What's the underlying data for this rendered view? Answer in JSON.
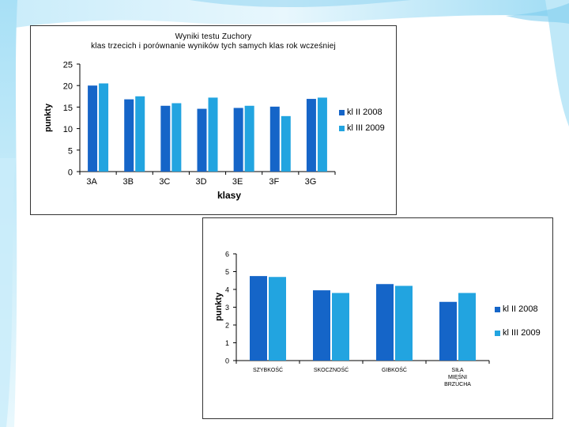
{
  "colors": {
    "series1": "#1565c8",
    "series2": "#22a4e0",
    "frame": "#333333"
  },
  "chart_data": [
    {
      "type": "bar",
      "title": "Wyniki testu Zuchory",
      "subtitle": "klas trzecich i porównanie wyników tych samych klas rok wcześniej",
      "xlabel": "klasy",
      "ylabel": "punkty",
      "categories": [
        "3A",
        "3B",
        "3C",
        "3D",
        "3E",
        "3F",
        "3G"
      ],
      "series": [
        {
          "name": "kl II 2008",
          "values": [
            20,
            16.8,
            15.3,
            14.6,
            14.8,
            15.1,
            16.9
          ]
        },
        {
          "name": "kl III 2009",
          "values": [
            20.5,
            17.5,
            15.9,
            17.2,
            15.3,
            12.9,
            17.2
          ]
        }
      ],
      "ylim": [
        0,
        25
      ],
      "yticks": [
        0,
        5,
        10,
        15,
        20,
        25
      ],
      "grid": false,
      "legend": "right"
    },
    {
      "type": "bar",
      "title": "",
      "xlabel": "",
      "ylabel": "punkty",
      "categories": [
        "SZYBKOŚĆ",
        "SKOCZNOŚĆ",
        "GIBKOŚĆ",
        "SIŁA MIĘŚNI BRZUCHA"
      ],
      "series": [
        {
          "name": "kl II 2008",
          "values": [
            4.75,
            3.95,
            4.3,
            3.3
          ]
        },
        {
          "name": "kl III 2009",
          "values": [
            4.7,
            3.8,
            4.2,
            3.8
          ]
        }
      ],
      "ylim": [
        0,
        6
      ],
      "yticks": [
        0,
        1,
        2,
        3,
        4,
        5,
        6
      ],
      "grid": false,
      "legend": "right"
    }
  ]
}
